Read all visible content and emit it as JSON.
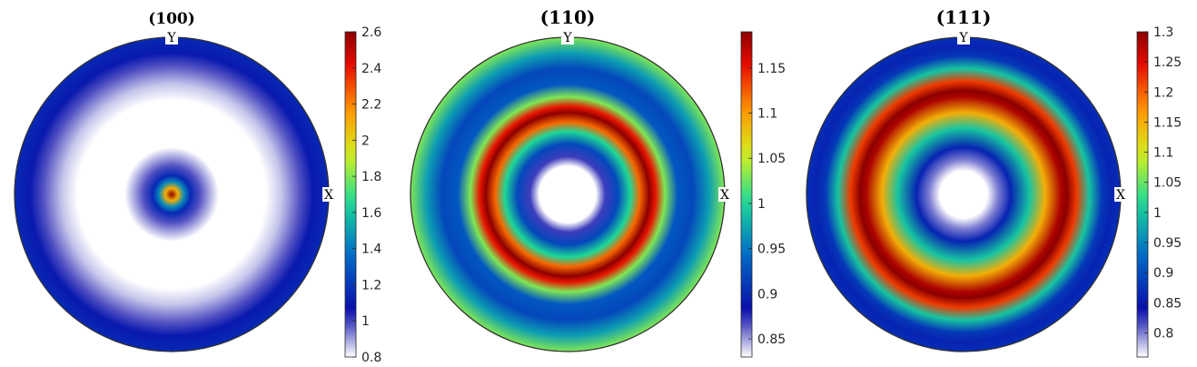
{
  "chart_data": [
    {
      "type": "heatmap",
      "subtype": "pole-figure",
      "title": "(100)",
      "axis_labels": {
        "x": "X",
        "y": "Y"
      },
      "colorbar": {
        "range": [
          0.8,
          2.6
        ],
        "ticks": [
          0.8,
          1,
          1.2,
          1.4,
          1.6,
          1.8,
          2,
          2.2,
          2.4,
          2.6
        ],
        "tick_labels": [
          "0.8",
          "1",
          "1.2",
          "1.4",
          "1.6",
          "1.8",
          "2",
          "2.2",
          "2.4",
          "2.6"
        ]
      },
      "radial_profile": [
        [
          0,
          2.6
        ],
        [
          0.04,
          2.1
        ],
        [
          0.08,
          1.45
        ],
        [
          0.12,
          1.15
        ],
        [
          0.18,
          0.98
        ],
        [
          0.26,
          0.86
        ],
        [
          0.3,
          0.8
        ],
        [
          0.6,
          0.8
        ],
        [
          0.7,
          0.86
        ],
        [
          0.82,
          0.98
        ],
        [
          0.9,
          1.1
        ],
        [
          1.0,
          1.15
        ]
      ]
    },
    {
      "type": "heatmap",
      "subtype": "pole-figure",
      "title": "(110)",
      "axis_labels": {
        "x": "X",
        "y": "Y"
      },
      "colorbar": {
        "range": [
          0.83,
          1.19
        ],
        "ticks": [
          0.85,
          0.9,
          0.95,
          1,
          1.05,
          1.1,
          1.15
        ],
        "tick_labels": [
          "0.85",
          "0.9",
          "0.95",
          "1",
          "1.05",
          "1.1",
          "1.15"
        ]
      },
      "radial_profile": [
        [
          0,
          0.83
        ],
        [
          0.18,
          0.83
        ],
        [
          0.24,
          0.87
        ],
        [
          0.32,
          0.92
        ],
        [
          0.4,
          1.0
        ],
        [
          0.46,
          1.12
        ],
        [
          0.52,
          1.19
        ],
        [
          0.56,
          1.15
        ],
        [
          0.62,
          1.03
        ],
        [
          0.7,
          0.93
        ],
        [
          0.8,
          0.92
        ],
        [
          0.9,
          0.97
        ],
        [
          1.0,
          1.03
        ]
      ]
    },
    {
      "type": "heatmap",
      "subtype": "pole-figure",
      "title": "(111)",
      "axis_labels": {
        "x": "X",
        "y": "Y"
      },
      "colorbar": {
        "range": [
          0.76,
          1.3
        ],
        "ticks": [
          0.8,
          0.85,
          0.9,
          0.95,
          1,
          1.05,
          1.1,
          1.15,
          1.2,
          1.25,
          1.3
        ],
        "tick_labels": [
          "0.8",
          "0.85",
          "0.9",
          "0.95",
          "1",
          "1.05",
          "1.1",
          "1.15",
          "1.2",
          "1.25",
          "1.3"
        ]
      },
      "radial_profile": [
        [
          0,
          0.76
        ],
        [
          0.15,
          0.76
        ],
        [
          0.22,
          0.8
        ],
        [
          0.3,
          0.86
        ],
        [
          0.42,
          1.0
        ],
        [
          0.52,
          1.15
        ],
        [
          0.62,
          1.28
        ],
        [
          0.66,
          1.3
        ],
        [
          0.72,
          1.22
        ],
        [
          0.8,
          1.0
        ],
        [
          0.88,
          0.88
        ],
        [
          0.94,
          0.86
        ],
        [
          1.0,
          0.87
        ]
      ]
    }
  ]
}
